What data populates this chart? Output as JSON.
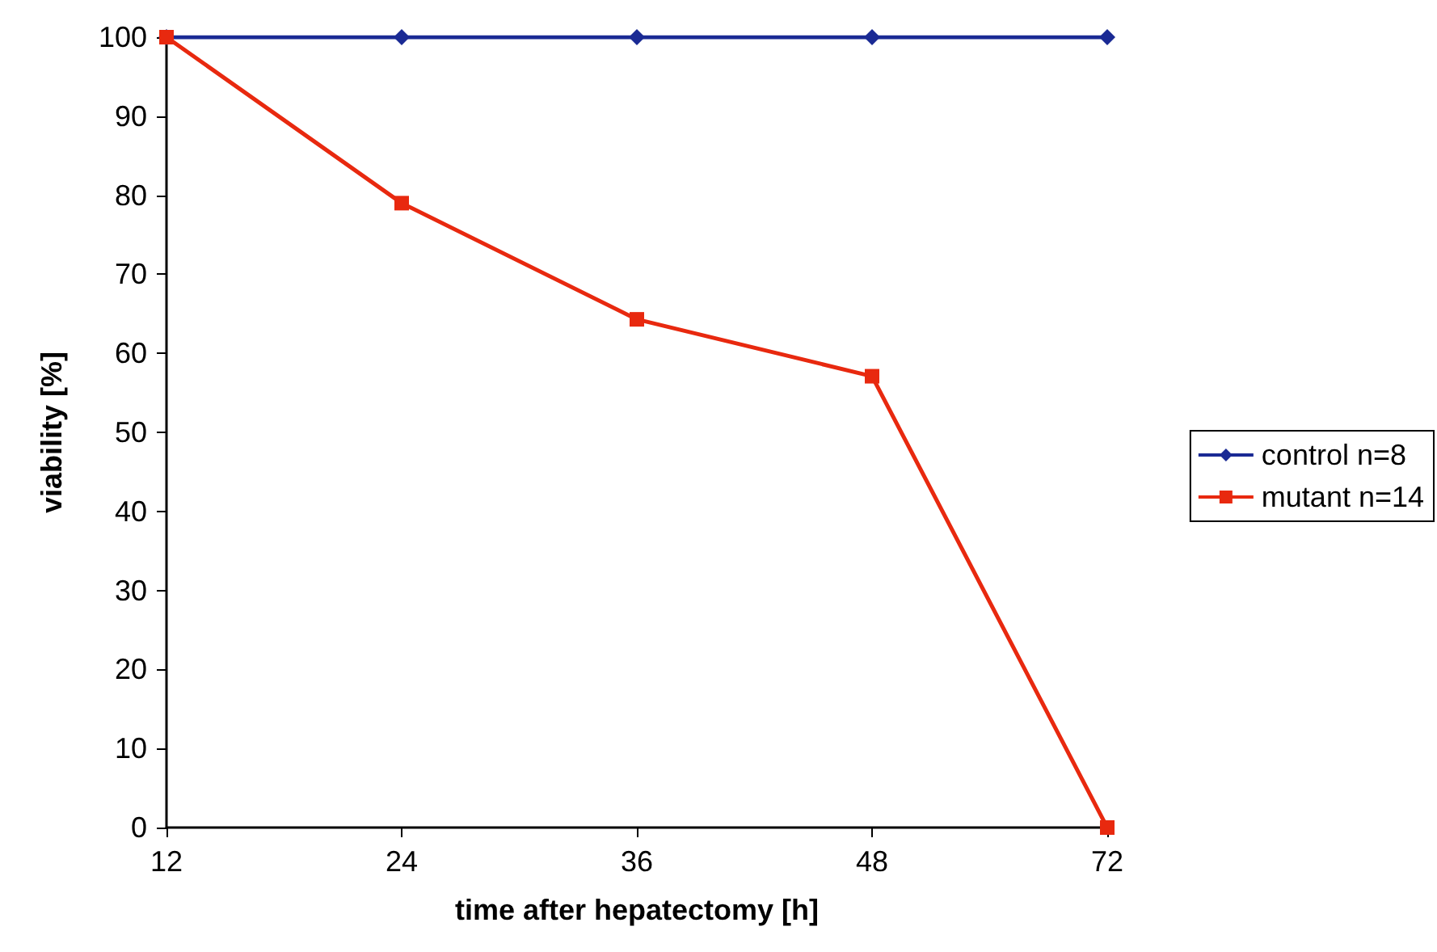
{
  "chart_data": {
    "type": "line",
    "xlabel": "time after hepatectomy [h]",
    "ylabel": "viability [%]",
    "categories": [
      "12",
      "24",
      "36",
      "48",
      "72"
    ],
    "series": [
      {
        "name": "control n=8",
        "color": "#1a2a94",
        "marker": "diamond",
        "values": [
          100,
          100,
          100,
          100,
          100
        ]
      },
      {
        "name": "mutant n=14",
        "color": "#e8290f",
        "marker": "square",
        "values": [
          100,
          79,
          64.3,
          57.1,
          0
        ]
      }
    ],
    "ylim": [
      0,
      100
    ],
    "yticks": [
      0,
      10,
      20,
      30,
      40,
      50,
      60,
      70,
      80,
      90,
      100
    ],
    "grid": false,
    "legend": "right",
    "line_style": "solid"
  }
}
